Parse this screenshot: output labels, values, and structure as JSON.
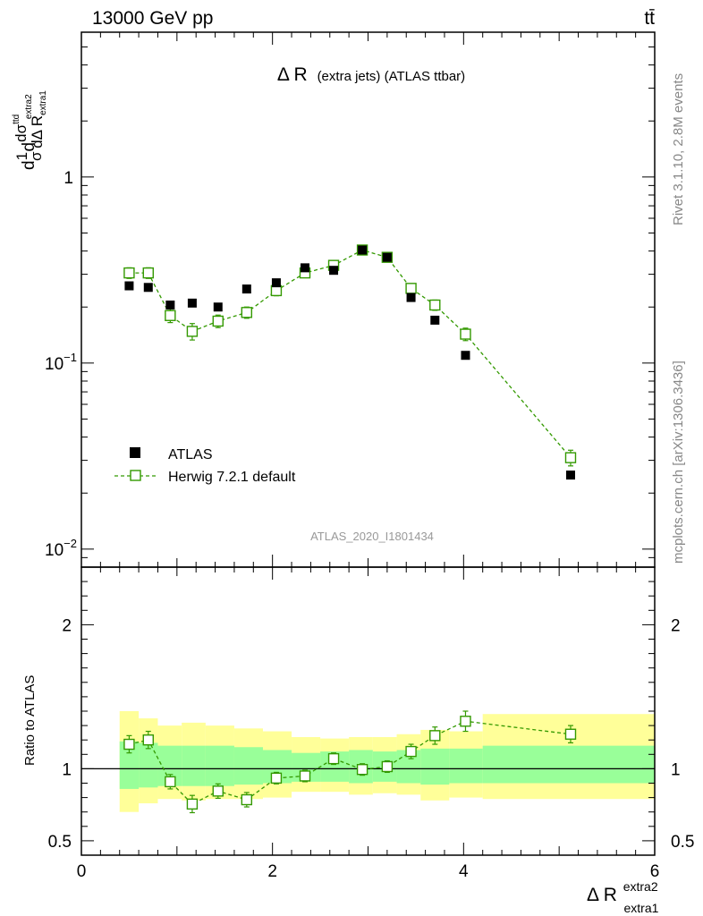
{
  "header": {
    "energy_label": "13000 GeV pp",
    "process_label": "tt̄"
  },
  "side_labels": {
    "rivet": "Rivet 3.1.10,  2.8M events",
    "mcplots": "mcplots.cern.ch [arXiv:1306.3436]"
  },
  "analysis_id": "ATLAS_2020_I1801434",
  "chart_data": [
    {
      "type": "scatter",
      "panel": "main",
      "title_main": "Δ R",
      "title_sub": "(extra jets) (ATLAS ttbar)",
      "ylabel_parts": {
        "prefix": "d",
        "sigma_frac": "1",
        "sigma_den": "σ",
        "d2": "d",
        "num": "dσ",
        "num_sup": "ttd",
        "den": "dΔ R",
        "den_sub": "extra1",
        "den_sup": "extra2"
      },
      "yscale": "log",
      "ylim": [
        0.008,
        6.0
      ],
      "xlim": [
        0,
        6
      ],
      "y_tick_labels": [
        {
          "value": 1,
          "label": "1"
        },
        {
          "value": 0.1,
          "label": "10",
          "exp": "−1"
        },
        {
          "value": 0.01,
          "label": "10",
          "exp": "−2"
        }
      ],
      "legend_position": "bottom-left",
      "series": [
        {
          "name": "ATLAS",
          "marker": "filled-square",
          "color": "#000000",
          "x": [
            0.5,
            0.7,
            0.93,
            1.16,
            1.43,
            1.73,
            2.04,
            2.34,
            2.64,
            2.94,
            3.2,
            3.45,
            3.7,
            4.02,
            5.12
          ],
          "y": [
            0.26,
            0.255,
            0.205,
            0.21,
            0.2,
            0.25,
            0.27,
            0.325,
            0.315,
            0.405,
            0.37,
            0.225,
            0.17,
            0.11,
            0.025
          ]
        },
        {
          "name": "Herwig 7.2.1 default",
          "marker": "open-square",
          "color": "#339900",
          "x": [
            0.5,
            0.7,
            0.93,
            1.16,
            1.43,
            1.73,
            2.04,
            2.34,
            2.64,
            2.94,
            3.2,
            3.45,
            3.7,
            4.02,
            5.12
          ],
          "y": [
            0.305,
            0.305,
            0.18,
            0.148,
            0.168,
            0.187,
            0.245,
            0.305,
            0.335,
            0.405,
            0.37,
            0.252,
            0.205,
            0.143,
            0.031
          ],
          "yerr": [
            0.02,
            0.02,
            0.015,
            0.015,
            0.013,
            0.013,
            0.015,
            0.015,
            0.015,
            0.015,
            0.015,
            0.015,
            0.013,
            0.011,
            0.003
          ]
        }
      ]
    },
    {
      "type": "scatter",
      "panel": "ratio",
      "ylabel": "Ratio to ATLAS",
      "xlabel_main": "Δ R",
      "xlabel_sub": "extra1",
      "xlabel_sup": "extra2",
      "ylim": [
        0.4,
        2.4
      ],
      "xlim": [
        0,
        6
      ],
      "x_tick_labels": [
        "0",
        "2",
        "4",
        "6"
      ],
      "x_ticks": [
        0,
        2,
        4,
        6
      ],
      "y_tick_labels": [
        {
          "value": 2,
          "label": "2"
        },
        {
          "value": 1,
          "label": "1"
        },
        {
          "value": 0.5,
          "label": "0.5"
        }
      ],
      "reference_line": 1,
      "bands": {
        "stat_color": "#99ff99",
        "total_color": "#ffff99",
        "bins": [
          {
            "x0": 0.4,
            "x1": 0.6,
            "stat": [
              0.86,
              1.19
            ],
            "total": [
              0.7,
              1.4
            ]
          },
          {
            "x0": 0.6,
            "x1": 0.8,
            "stat": [
              0.87,
              1.18
            ],
            "total": [
              0.76,
              1.35
            ]
          },
          {
            "x0": 0.8,
            "x1": 1.05,
            "stat": [
              0.88,
              1.16
            ],
            "total": [
              0.79,
              1.3
            ]
          },
          {
            "x0": 1.05,
            "x1": 1.3,
            "stat": [
              0.88,
              1.16
            ],
            "total": [
              0.78,
              1.32
            ]
          },
          {
            "x0": 1.3,
            "x1": 1.6,
            "stat": [
              0.88,
              1.16
            ],
            "total": [
              0.79,
              1.3
            ]
          },
          {
            "x0": 1.6,
            "x1": 1.9,
            "stat": [
              0.89,
              1.15
            ],
            "total": [
              0.79,
              1.28
            ]
          },
          {
            "x0": 1.9,
            "x1": 2.2,
            "stat": [
              0.9,
              1.13
            ],
            "total": [
              0.8,
              1.26
            ]
          },
          {
            "x0": 2.2,
            "x1": 2.5,
            "stat": [
              0.91,
              1.11
            ],
            "total": [
              0.84,
              1.22
            ]
          },
          {
            "x0": 2.5,
            "x1": 2.8,
            "stat": [
              0.91,
              1.12
            ],
            "total": [
              0.84,
              1.21
            ]
          },
          {
            "x0": 2.8,
            "x1": 3.05,
            "stat": [
              0.9,
              1.13
            ],
            "total": [
              0.82,
              1.22
            ]
          },
          {
            "x0": 3.05,
            "x1": 3.3,
            "stat": [
              0.91,
              1.12
            ],
            "total": [
              0.83,
              1.22
            ]
          },
          {
            "x0": 3.3,
            "x1": 3.55,
            "stat": [
              0.9,
              1.13
            ],
            "total": [
              0.82,
              1.24
            ]
          },
          {
            "x0": 3.55,
            "x1": 3.85,
            "stat": [
              0.89,
              1.14
            ],
            "total": [
              0.78,
              1.27
            ]
          },
          {
            "x0": 3.85,
            "x1": 4.2,
            "stat": [
              0.9,
              1.14
            ],
            "total": [
              0.8,
              1.26
            ]
          },
          {
            "x0": 4.2,
            "x1": 6.0,
            "stat": [
              0.9,
              1.16
            ],
            "total": [
              0.79,
              1.38
            ]
          }
        ]
      },
      "series": [
        {
          "name": "Herwig 7.2.1 default",
          "marker": "open-square",
          "color": "#339900",
          "x": [
            0.5,
            0.7,
            0.93,
            1.16,
            1.43,
            1.73,
            2.04,
            2.34,
            2.64,
            2.94,
            3.2,
            3.45,
            3.7,
            4.02,
            5.12
          ],
          "y": [
            1.17,
            1.2,
            0.91,
            0.755,
            0.845,
            0.785,
            0.935,
            0.95,
            1.07,
            0.995,
            1.015,
            1.12,
            1.23,
            1.33,
            1.24
          ],
          "yerr": [
            0.06,
            0.06,
            0.05,
            0.06,
            0.05,
            0.05,
            0.04,
            0.04,
            0.04,
            0.04,
            0.04,
            0.05,
            0.06,
            0.07,
            0.06
          ]
        }
      ]
    }
  ]
}
